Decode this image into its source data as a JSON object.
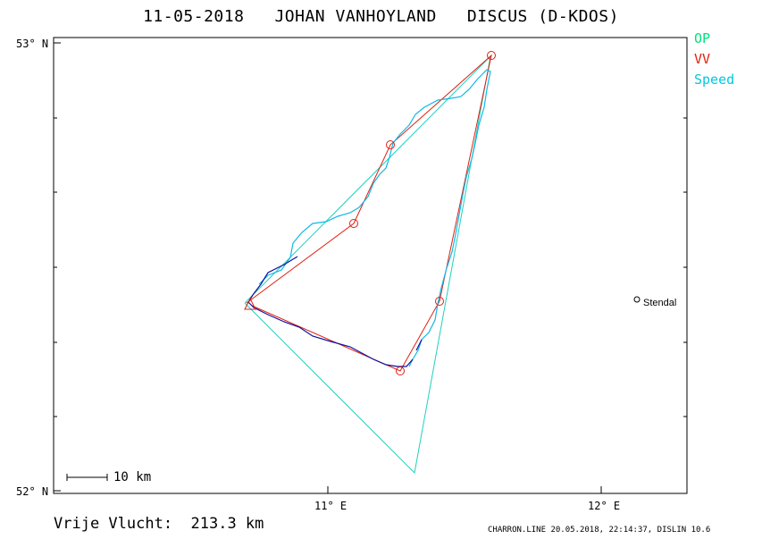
{
  "title": "11-05-2018   JOHAN VANHOYLAND   DISCUS (D-KDOS)",
  "legend": [
    {
      "label": "OP",
      "color": "#00e07a"
    },
    {
      "label": "VV",
      "color": "#e02010"
    },
    {
      "label": "Speed",
      "color": "#00c8e0"
    }
  ],
  "axes": {
    "lat_top_label": "53° N",
    "lat_bottom_label": "52° N",
    "lon_label_1": "11° E",
    "lon_label_2": "12° E"
  },
  "place": {
    "name": "Stendal"
  },
  "scale_bar": {
    "label": "10 km"
  },
  "footer": {
    "distance": "Vrije Vlucht:  213.3 km",
    "info": "CHARRON.LINE 20.05.2018, 22:14:37, DISLIN 10.6"
  },
  "colors": {
    "route_vv": "#e02010",
    "route_op": "#20d0c0",
    "track_speed": "#10b8e8",
    "track_dark": "#1010a0"
  }
}
